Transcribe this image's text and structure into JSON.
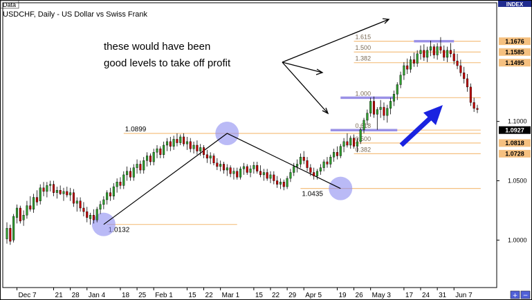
{
  "window": {
    "tag": "Data",
    "title": "USDCHF, Daily - US Dollar vs Swiss Frank",
    "index_label": "INDEX"
  },
  "annotation": {
    "line1": "these would have been",
    "line2": "good levels to take off profit"
  },
  "colors": {
    "background": "#ffffff",
    "fib_line": "#f5c080",
    "highlight_circle": "#8c8cf0",
    "highlight_bar": "#9a90e6",
    "up_candle": "#2e9e2e",
    "down_candle": "#c00000",
    "arrow": "#1a23e0",
    "axis_frame": "#000000"
  },
  "chart_data": {
    "type": "candlestick",
    "title": "USDCHF, Daily - US Dollar vs Swiss Frank",
    "ylim": [
      0.96,
      1.2
    ],
    "y_ticks": [
      "1.1676",
      "1.1585",
      "1.1495",
      "1.1000",
      "1.0927",
      "1.0818",
      "1.0728",
      "1.0500",
      "1.0000"
    ],
    "y_tick_values": [
      1.1676,
      1.1585,
      1.1495,
      1.1,
      1.0927,
      1.0818,
      1.0728,
      1.05,
      1.0
    ],
    "highlighted_prices": [
      {
        "label": "1.1676",
        "value": 1.1676,
        "bg": "#f5c080",
        "fg": "#000000"
      },
      {
        "label": "1.1585",
        "value": 1.1585,
        "bg": "#f5c080",
        "fg": "#000000"
      },
      {
        "label": "1.1495",
        "value": 1.1495,
        "bg": "#f5c080",
        "fg": "#000000"
      },
      {
        "label": "1.0927",
        "value": 1.0927,
        "bg": "#000000",
        "fg": "#ffffff"
      },
      {
        "label": "1.0818",
        "value": 1.0818,
        "bg": "#f5c080",
        "fg": "#000000"
      },
      {
        "label": "1.0728",
        "value": 1.0728,
        "bg": "#f5c080",
        "fg": "#000000"
      }
    ],
    "x_ticks": [
      "Dec 7",
      "21",
      "28",
      "Jan 4",
      "18",
      "25",
      "Feb 1",
      "15",
      "22",
      "Mar 1",
      "15",
      "22",
      "29",
      "Apr 5",
      "19",
      "26",
      "May 3",
      "17",
      "24",
      "31",
      "Jun 7"
    ],
    "x_tick_index": [
      3,
      14,
      19,
      24,
      34,
      39,
      44,
      54,
      59,
      64,
      74,
      79,
      84,
      89,
      99,
      104,
      109,
      119,
      124,
      129,
      134
    ],
    "x_count": 142,
    "candles": [
      [
        1.001,
        1.015,
        0.997,
        1.01
      ],
      [
        1.01,
        1.013,
        0.996,
        0.999
      ],
      [
        1.0,
        1.022,
        0.998,
        1.02
      ],
      [
        1.019,
        1.03,
        1.014,
        1.027
      ],
      [
        1.027,
        1.029,
        1.014,
        1.016
      ],
      [
        1.017,
        1.025,
        1.012,
        1.021
      ],
      [
        1.021,
        1.033,
        1.018,
        1.029
      ],
      [
        1.029,
        1.037,
        1.024,
        1.026
      ],
      [
        1.026,
        1.039,
        1.023,
        1.036
      ],
      [
        1.036,
        1.042,
        1.029,
        1.032
      ],
      [
        1.033,
        1.047,
        1.03,
        1.044
      ],
      [
        1.044,
        1.049,
        1.037,
        1.041
      ],
      [
        1.041,
        1.049,
        1.036,
        1.046
      ],
      [
        1.046,
        1.05,
        1.041,
        1.047
      ],
      [
        1.047,
        1.05,
        1.037,
        1.04
      ],
      [
        1.04,
        1.045,
        1.035,
        1.042
      ],
      [
        1.042,
        1.046,
        1.038,
        1.039
      ],
      [
        1.039,
        1.044,
        1.033,
        1.041
      ],
      [
        1.041,
        1.045,
        1.036,
        1.038
      ],
      [
        1.038,
        1.044,
        1.033,
        1.04
      ],
      [
        1.04,
        1.043,
        1.028,
        1.031
      ],
      [
        1.031,
        1.036,
        1.024,
        1.033
      ],
      [
        1.033,
        1.036,
        1.024,
        1.027
      ],
      [
        1.027,
        1.032,
        1.02,
        1.024
      ],
      [
        1.024,
        1.028,
        1.015,
        1.019
      ],
      [
        1.018,
        1.023,
        1.013,
        1.021
      ],
      [
        1.021,
        1.026,
        1.014,
        1.017
      ],
      [
        1.017,
        1.028,
        1.015,
        1.026
      ],
      [
        1.026,
        1.033,
        1.022,
        1.03
      ],
      [
        1.03,
        1.037,
        1.026,
        1.034
      ],
      [
        1.034,
        1.042,
        1.03,
        1.04
      ],
      [
        1.04,
        1.044,
        1.033,
        1.037
      ],
      [
        1.037,
        1.048,
        1.034,
        1.045
      ],
      [
        1.045,
        1.052,
        1.04,
        1.049
      ],
      [
        1.049,
        1.053,
        1.043,
        1.046
      ],
      [
        1.046,
        1.058,
        1.043,
        1.055
      ],
      [
        1.055,
        1.062,
        1.05,
        1.058
      ],
      [
        1.058,
        1.061,
        1.05,
        1.053
      ],
      [
        1.053,
        1.064,
        1.05,
        1.061
      ],
      [
        1.061,
        1.068,
        1.056,
        1.064
      ],
      [
        1.064,
        1.067,
        1.056,
        1.059
      ],
      [
        1.059,
        1.07,
        1.056,
        1.067
      ],
      [
        1.067,
        1.074,
        1.062,
        1.071
      ],
      [
        1.071,
        1.073,
        1.063,
        1.066
      ],
      [
        1.066,
        1.077,
        1.063,
        1.074
      ],
      [
        1.074,
        1.08,
        1.069,
        1.077
      ],
      [
        1.077,
        1.079,
        1.069,
        1.072
      ],
      [
        1.072,
        1.083,
        1.069,
        1.08
      ],
      [
        1.08,
        1.086,
        1.075,
        1.083
      ],
      [
        1.083,
        1.087,
        1.075,
        1.079
      ],
      [
        1.079,
        1.088,
        1.076,
        1.085
      ],
      [
        1.085,
        1.09,
        1.079,
        1.082
      ],
      [
        1.082,
        1.089,
        1.08,
        1.087
      ],
      [
        1.087,
        1.09,
        1.079,
        1.081
      ],
      [
        1.081,
        1.087,
        1.076,
        1.083
      ],
      [
        1.083,
        1.086,
        1.074,
        1.077
      ],
      [
        1.077,
        1.083,
        1.073,
        1.08
      ],
      [
        1.08,
        1.084,
        1.072,
        1.075
      ],
      [
        1.075,
        1.081,
        1.071,
        1.078
      ],
      [
        1.078,
        1.08,
        1.069,
        1.072
      ],
      [
        1.072,
        1.076,
        1.065,
        1.069
      ],
      [
        1.069,
        1.074,
        1.064,
        1.071
      ],
      [
        1.071,
        1.073,
        1.063,
        1.065
      ],
      [
        1.065,
        1.069,
        1.059,
        1.062
      ],
      [
        1.062,
        1.067,
        1.058,
        1.064
      ],
      [
        1.064,
        1.066,
        1.056,
        1.059
      ],
      [
        1.059,
        1.064,
        1.054,
        1.061
      ],
      [
        1.061,
        1.063,
        1.053,
        1.056
      ],
      [
        1.056,
        1.061,
        1.051,
        1.058
      ],
      [
        1.058,
        1.061,
        1.051,
        1.053
      ],
      [
        1.053,
        1.062,
        1.051,
        1.06
      ],
      [
        1.06,
        1.065,
        1.055,
        1.062
      ],
      [
        1.062,
        1.064,
        1.055,
        1.057
      ],
      [
        1.057,
        1.063,
        1.053,
        1.06
      ],
      [
        1.06,
        1.066,
        1.056,
        1.063
      ],
      [
        1.063,
        1.066,
        1.056,
        1.058
      ],
      [
        1.058,
        1.063,
        1.053,
        1.055
      ],
      [
        1.055,
        1.06,
        1.05,
        1.057
      ],
      [
        1.057,
        1.06,
        1.05,
        1.052
      ],
      [
        1.052,
        1.058,
        1.048,
        1.055
      ],
      [
        1.055,
        1.058,
        1.047,
        1.05
      ],
      [
        1.05,
        1.054,
        1.044,
        1.047
      ],
      [
        1.047,
        1.052,
        1.043,
        1.049
      ],
      [
        1.049,
        1.051,
        1.042,
        1.045
      ],
      [
        1.045,
        1.054,
        1.043,
        1.052
      ],
      [
        1.052,
        1.06,
        1.049,
        1.057
      ],
      [
        1.057,
        1.065,
        1.054,
        1.062
      ],
      [
        1.062,
        1.068,
        1.057,
        1.064
      ],
      [
        1.064,
        1.073,
        1.061,
        1.07
      ],
      [
        1.07,
        1.075,
        1.064,
        1.067
      ],
      [
        1.067,
        1.07,
        1.058,
        1.061
      ],
      [
        1.061,
        1.064,
        1.054,
        1.057
      ],
      [
        1.057,
        1.061,
        1.051,
        1.054
      ],
      [
        1.054,
        1.06,
        1.051,
        1.058
      ],
      [
        1.058,
        1.064,
        1.055,
        1.061
      ],
      [
        1.061,
        1.068,
        1.058,
        1.066
      ],
      [
        1.066,
        1.07,
        1.061,
        1.064
      ],
      [
        1.064,
        1.072,
        1.061,
        1.07
      ],
      [
        1.07,
        1.077,
        1.066,
        1.074
      ],
      [
        1.074,
        1.079,
        1.068,
        1.071
      ],
      [
        1.071,
        1.081,
        1.069,
        1.079
      ],
      [
        1.079,
        1.086,
        1.074,
        1.083
      ],
      [
        1.083,
        1.09,
        1.078,
        1.08
      ],
      [
        1.08,
        1.088,
        1.077,
        1.086
      ],
      [
        1.086,
        1.089,
        1.077,
        1.079
      ],
      [
        1.079,
        1.086,
        1.074,
        1.083
      ],
      [
        1.083,
        1.095,
        1.081,
        1.093
      ],
      [
        1.093,
        1.103,
        1.09,
        1.101
      ],
      [
        1.101,
        1.11,
        1.097,
        1.107
      ],
      [
        1.107,
        1.12,
        1.104,
        1.117
      ],
      [
        1.117,
        1.121,
        1.103,
        1.106
      ],
      [
        1.106,
        1.112,
        1.093,
        1.11
      ],
      [
        1.11,
        1.118,
        1.103,
        1.112
      ],
      [
        1.112,
        1.116,
        1.101,
        1.105
      ],
      [
        1.105,
        1.114,
        1.099,
        1.111
      ],
      [
        1.111,
        1.12,
        1.106,
        1.117
      ],
      [
        1.117,
        1.126,
        1.113,
        1.123
      ],
      [
        1.123,
        1.133,
        1.118,
        1.131
      ],
      [
        1.131,
        1.142,
        1.128,
        1.139
      ],
      [
        1.139,
        1.15,
        1.135,
        1.147
      ],
      [
        1.147,
        1.153,
        1.14,
        1.144
      ],
      [
        1.144,
        1.155,
        1.141,
        1.152
      ],
      [
        1.152,
        1.158,
        1.146,
        1.149
      ],
      [
        1.149,
        1.16,
        1.146,
        1.157
      ],
      [
        1.157,
        1.164,
        1.152,
        1.16
      ],
      [
        1.16,
        1.165,
        1.151,
        1.154
      ],
      [
        1.154,
        1.163,
        1.15,
        1.16
      ],
      [
        1.16,
        1.168,
        1.155,
        1.163
      ],
      [
        1.163,
        1.165,
        1.153,
        1.156
      ],
      [
        1.156,
        1.166,
        1.152,
        1.163
      ],
      [
        1.163,
        1.171,
        1.157,
        1.16
      ],
      [
        1.16,
        1.164,
        1.151,
        1.154
      ],
      [
        1.154,
        1.163,
        1.15,
        1.16
      ],
      [
        1.16,
        1.166,
        1.154,
        1.157
      ],
      [
        1.157,
        1.161,
        1.148,
        1.151
      ],
      [
        1.151,
        1.157,
        1.144,
        1.147
      ],
      [
        1.147,
        1.152,
        1.138,
        1.141
      ],
      [
        1.141,
        1.146,
        1.132,
        1.136
      ],
      [
        1.136,
        1.14,
        1.125,
        1.129
      ],
      [
        1.129,
        1.132,
        1.113,
        1.116
      ],
      [
        1.116,
        1.12,
        1.108,
        1.111
      ],
      [
        1.111,
        1.114,
        1.107,
        1.11
      ]
    ],
    "fib_levels": [
      {
        "label": "1.615",
        "value": 1.1676,
        "x_from": 104,
        "x_to": 142
      },
      {
        "label": "1.500",
        "value": 1.1585,
        "x_from": 104,
        "x_to": 142
      },
      {
        "label": "1.382",
        "value": 1.1495,
        "x_from": 104,
        "x_to": 142
      },
      {
        "label": "1.000",
        "value": 1.12,
        "x_from": 104,
        "x_to": 142
      },
      {
        "label": "0.618",
        "value": 1.0927,
        "x_from": 104,
        "x_to": 142
      },
      {
        "label": "0.500",
        "value": 1.0818,
        "x_from": 104,
        "x_to": 142
      },
      {
        "label": "0.382",
        "value": 1.0728,
        "x_from": 104,
        "x_to": 142
      }
    ],
    "swing_levels": [
      {
        "label": "1.0899",
        "value": 1.0899,
        "x_from": 35,
        "x_to": 142
      },
      {
        "label": "1.0132",
        "value": 1.0132,
        "x_from": 30,
        "x_to": 69
      },
      {
        "label": "1.0435",
        "value": 1.0435,
        "x_from": 88,
        "x_to": 142
      }
    ],
    "swing_points": [
      {
        "i": 29,
        "value": 1.0132
      },
      {
        "i": 66,
        "value": 1.0899
      },
      {
        "i": 100,
        "value": 1.0435
      }
    ]
  }
}
